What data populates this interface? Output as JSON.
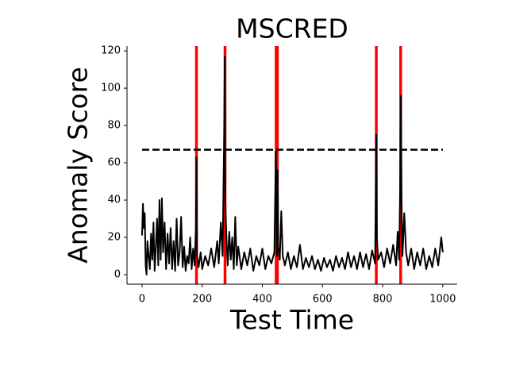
{
  "chart_data": {
    "type": "line",
    "title": "MSCRED",
    "x_label": "Test Time",
    "y_label": "Anomaly Score",
    "color": "#000000",
    "x": [
      0,
      3,
      6,
      9,
      12,
      15,
      18,
      22,
      26,
      30,
      34,
      38,
      42,
      46,
      50,
      54,
      58,
      62,
      66,
      70,
      75,
      80,
      85,
      90,
      95,
      100,
      105,
      110,
      115,
      120,
      125,
      130,
      135,
      140,
      145,
      150,
      155,
      160,
      165,
      170,
      175,
      179,
      181,
      183,
      188,
      195,
      200,
      210,
      220,
      230,
      240,
      250,
      255,
      262,
      268,
      273,
      275,
      277,
      280,
      285,
      290,
      295,
      300,
      305,
      310,
      315,
      320,
      330,
      340,
      350,
      360,
      370,
      380,
      390,
      400,
      410,
      420,
      430,
      440,
      445,
      447,
      449,
      451,
      453,
      458,
      463,
      468,
      475,
      485,
      495,
      505,
      515,
      525,
      535,
      545,
      555,
      565,
      575,
      585,
      595,
      605,
      615,
      625,
      635,
      645,
      655,
      665,
      675,
      685,
      695,
      705,
      715,
      725,
      735,
      745,
      755,
      765,
      775,
      779,
      781,
      785,
      795,
      805,
      815,
      825,
      835,
      845,
      850,
      855,
      859,
      861,
      863,
      866,
      872,
      878,
      885,
      895,
      905,
      915,
      925,
      935,
      945,
      955,
      965,
      975,
      985,
      995,
      1000
    ],
    "values": [
      21,
      38,
      25,
      33,
      5,
      0,
      18,
      10,
      3,
      22,
      8,
      28,
      2,
      15,
      30,
      5,
      40,
      8,
      41,
      12,
      28,
      3,
      22,
      6,
      25,
      3,
      18,
      2,
      30,
      5,
      12,
      31,
      4,
      15,
      2,
      10,
      6,
      20,
      3,
      14,
      5,
      25,
      63,
      10,
      4,
      12,
      3,
      10,
      5,
      14,
      4,
      18,
      6,
      28,
      10,
      76,
      117,
      40,
      22,
      5,
      23,
      8,
      20,
      3,
      31,
      5,
      15,
      3,
      12,
      5,
      14,
      2,
      10,
      5,
      14,
      3,
      10,
      6,
      12,
      66,
      35,
      10,
      56,
      15,
      8,
      34,
      10,
      5,
      12,
      3,
      10,
      4,
      16,
      3,
      9,
      4,
      10,
      3,
      8,
      2,
      9,
      4,
      8,
      2,
      10,
      4,
      9,
      3,
      12,
      4,
      10,
      3,
      12,
      4,
      11,
      3,
      13,
      6,
      75,
      20,
      8,
      12,
      4,
      14,
      6,
      16,
      5,
      23,
      8,
      56,
      96,
      40,
      10,
      33,
      12,
      5,
      14,
      3,
      12,
      5,
      14,
      3,
      10,
      4,
      14,
      5,
      20,
      12
    ],
    "anomaly_color": "#ff0000",
    "anomalies": [
      181,
      276,
      446,
      450,
      779,
      860
    ],
    "threshold": 67,
    "xlim": [
      -50,
      1048
    ],
    "ylim": [
      -5.1,
      122.6
    ],
    "xticks": [
      0,
      200,
      400,
      600,
      800,
      1000
    ],
    "yticks": [
      0,
      20,
      40,
      60,
      80,
      100,
      120
    ]
  }
}
